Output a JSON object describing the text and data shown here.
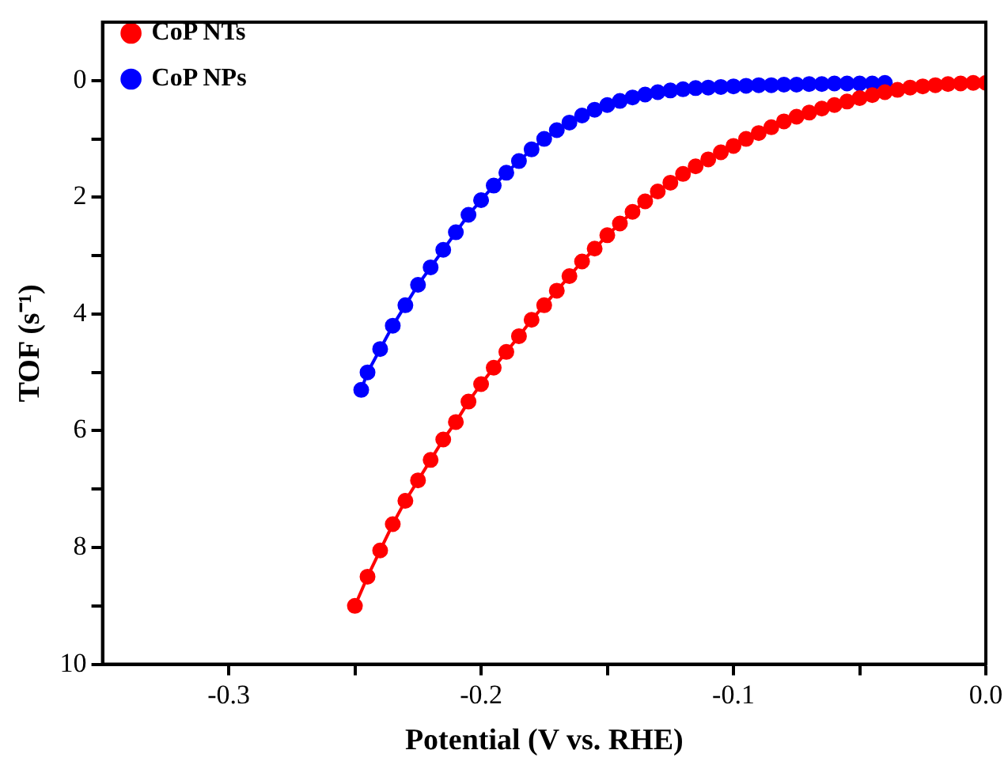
{
  "chart_data": {
    "type": "line",
    "xlabel": "Potential (V vs. RHE)",
    "ylabel": "TOF (s⁻¹)",
    "xlim": [
      -0.35,
      0.0
    ],
    "xticks": [
      -0.3,
      {
        "value": -0.25,
        "label": null
      },
      -0.2,
      {
        "value": -0.15,
        "label": null
      },
      -0.1,
      {
        "value": -0.05,
        "label": null
      },
      {
        "value": 0,
        "label": "0.0"
      }
    ],
    "ylim": [
      10,
      -1
    ],
    "yticks": [
      0,
      {
        "value": 1,
        "label": null
      },
      2,
      {
        "value": 3,
        "label": null
      },
      4,
      {
        "value": 5,
        "label": null
      },
      6,
      {
        "value": 7,
        "label": null
      },
      8,
      {
        "value": 9,
        "label": null
      },
      10
    ],
    "grid": false,
    "legend": "top left",
    "marker": "circle",
    "line_style": "solid",
    "series": [
      {
        "name": "CoP NTs",
        "color": "#ff0000",
        "x": [
          -0.25,
          -0.245,
          -0.24,
          -0.235,
          -0.23,
          -0.225,
          -0.22,
          -0.215,
          -0.21,
          -0.205,
          -0.2,
          -0.195,
          -0.19,
          -0.185,
          -0.18,
          -0.175,
          -0.17,
          -0.165,
          -0.16,
          -0.155,
          -0.15,
          -0.145,
          -0.14,
          -0.135,
          -0.13,
          -0.125,
          -0.12,
          -0.115,
          -0.11,
          -0.105,
          -0.1,
          -0.095,
          -0.09,
          -0.085,
          -0.08,
          -0.075,
          -0.07,
          -0.065,
          -0.06,
          -0.055,
          -0.05,
          -0.045,
          -0.04,
          -0.035,
          -0.03,
          -0.025,
          -0.02,
          -0.015,
          -0.01,
          -0.005,
          0
        ],
        "values": [
          9.0,
          8.5,
          8.05,
          7.6,
          7.2,
          6.85,
          6.5,
          6.15,
          5.85,
          5.5,
          5.2,
          4.92,
          4.65,
          4.38,
          4.1,
          3.85,
          3.6,
          3.35,
          3.1,
          2.88,
          2.65,
          2.45,
          2.25,
          2.07,
          1.9,
          1.75,
          1.6,
          1.47,
          1.35,
          1.23,
          1.12,
          1.0,
          0.9,
          0.8,
          0.7,
          0.62,
          0.55,
          0.48,
          0.42,
          0.36,
          0.3,
          0.25,
          0.2,
          0.16,
          0.12,
          0.1,
          0.08,
          0.06,
          0.05,
          0.04,
          0.04
        ]
      },
      {
        "name": "CoP NPs",
        "color": "#0000ff",
        "x": [
          -0.2475,
          -0.245,
          -0.24,
          -0.235,
          -0.23,
          -0.225,
          -0.22,
          -0.215,
          -0.21,
          -0.205,
          -0.2,
          -0.195,
          -0.19,
          -0.185,
          -0.18,
          -0.175,
          -0.17,
          -0.165,
          -0.16,
          -0.155,
          -0.15,
          -0.145,
          -0.14,
          -0.135,
          -0.13,
          -0.125,
          -0.12,
          -0.115,
          -0.11,
          -0.105,
          -0.1,
          -0.095,
          -0.09,
          -0.085,
          -0.08,
          -0.075,
          -0.07,
          -0.065,
          -0.06,
          -0.055,
          -0.05,
          -0.045,
          -0.04
        ],
        "values": [
          5.3,
          5.0,
          4.6,
          4.2,
          3.85,
          3.5,
          3.2,
          2.9,
          2.6,
          2.3,
          2.05,
          1.8,
          1.58,
          1.38,
          1.18,
          1.0,
          0.85,
          0.72,
          0.6,
          0.5,
          0.42,
          0.35,
          0.29,
          0.24,
          0.2,
          0.17,
          0.15,
          0.13,
          0.12,
          0.11,
          0.1,
          0.09,
          0.08,
          0.08,
          0.07,
          0.07,
          0.06,
          0.06,
          0.05,
          0.05,
          0.05,
          0.05,
          0.04
        ]
      }
    ]
  }
}
